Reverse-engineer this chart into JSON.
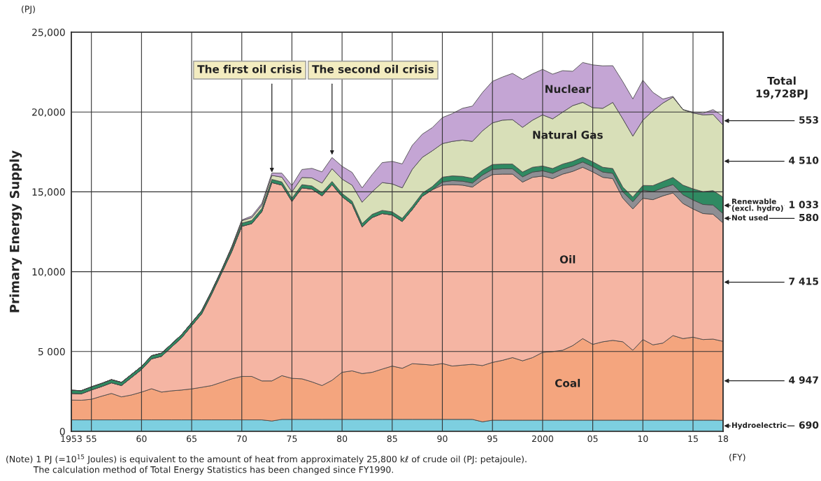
{
  "chart_data": {
    "type": "area",
    "stacked": true,
    "ylabel": "Primary Energy Supply",
    "x": [
      1953,
      1954,
      1955,
      1956,
      1957,
      1958,
      1959,
      1960,
      1961,
      1962,
      1963,
      1964,
      1965,
      1966,
      1967,
      1968,
      1969,
      1970,
      1971,
      1972,
      1973,
      1974,
      1975,
      1976,
      1977,
      1978,
      1979,
      1980,
      1981,
      1982,
      1983,
      1984,
      1985,
      1986,
      1987,
      1988,
      1989,
      1990,
      1991,
      1992,
      1993,
      1994,
      1995,
      1996,
      1997,
      1998,
      1999,
      2000,
      2001,
      2002,
      2003,
      2004,
      2005,
      2006,
      2007,
      2008,
      2009,
      2010,
      2011,
      2012,
      2013,
      2014,
      2015,
      2016,
      2017,
      2018
    ],
    "series": [
      {
        "name": "Hydroelectric",
        "color": "#7dcfe0",
        "values": [
          720,
          720,
          720,
          720,
          720,
          720,
          720,
          720,
          720,
          720,
          720,
          720,
          720,
          720,
          720,
          720,
          720,
          720,
          720,
          720,
          650,
          750,
          750,
          750,
          750,
          750,
          750,
          750,
          750,
          750,
          750,
          750,
          750,
          750,
          750,
          750,
          750,
          750,
          750,
          750,
          750,
          600,
          700,
          700,
          700,
          700,
          700,
          700,
          700,
          700,
          700,
          700,
          700,
          700,
          700,
          700,
          700,
          700,
          700,
          700,
          700,
          700,
          700,
          700,
          700,
          690
        ]
      },
      {
        "name": "Coal",
        "color": "#f4a57e",
        "values": [
          1240,
          1230,
          1290,
          1480,
          1655,
          1440,
          1560,
          1740,
          1950,
          1740,
          1820,
          1870,
          1940,
          2040,
          2150,
          2360,
          2570,
          2720,
          2720,
          2440,
          2510,
          2740,
          2570,
          2540,
          2350,
          2120,
          2450,
          2950,
          3040,
          2870,
          2950,
          3150,
          3340,
          3200,
          3490,
          3450,
          3400,
          3500,
          3340,
          3400,
          3450,
          3520,
          3620,
          3750,
          3920,
          3720,
          3920,
          4250,
          4300,
          4380,
          4670,
          5110,
          4750,
          4910,
          5000,
          4910,
          4380,
          5050,
          4720,
          4830,
          5300,
          5110,
          5200,
          5050,
          5080,
          4947
        ]
      },
      {
        "name": "Oil",
        "color": "#f5b5a3",
        "values": [
          415,
          400,
          580,
          600,
          665,
          710,
          1090,
          1410,
          1870,
          2240,
          2740,
          3270,
          3950,
          4600,
          5730,
          6850,
          7970,
          9400,
          9570,
          10600,
          12420,
          11930,
          11080,
          11960,
          12070,
          11880,
          12250,
          11000,
          10430,
          9190,
          9690,
          9740,
          9460,
          9190,
          9650,
          10520,
          10980,
          11170,
          11360,
          11270,
          11100,
          11630,
          11760,
          11660,
          11490,
          11190,
          11290,
          11040,
          10830,
          11030,
          10910,
          10730,
          10800,
          10300,
          10130,
          8990,
          8850,
          8850,
          9090,
          9220,
          8930,
          8460,
          8030,
          7890,
          7820,
          7415
        ]
      },
      {
        "name": "Not used",
        "color": "#8e8e93",
        "values": [
          0,
          0,
          0,
          0,
          0,
          0,
          0,
          0,
          0,
          0,
          0,
          0,
          0,
          0,
          0,
          0,
          0,
          0,
          0,
          0,
          0,
          0,
          0,
          0,
          0,
          0,
          0,
          0,
          0,
          0,
          0,
          0,
          0,
          0,
          0,
          0,
          0,
          200,
          250,
          250,
          250,
          300,
          330,
          330,
          330,
          330,
          330,
          330,
          330,
          330,
          330,
          330,
          330,
          330,
          330,
          400,
          450,
          500,
          500,
          500,
          520,
          550,
          560,
          570,
          575,
          580
        ]
      },
      {
        "name": "Renewable\n(excl. hydro)",
        "color": "#2f8a62",
        "values": [
          200,
          200,
          200,
          200,
          200,
          200,
          200,
          200,
          200,
          200,
          200,
          200,
          200,
          200,
          200,
          200,
          200,
          200,
          200,
          200,
          200,
          200,
          200,
          200,
          200,
          200,
          200,
          200,
          200,
          200,
          200,
          200,
          200,
          200,
          200,
          200,
          200,
          300,
          300,
          300,
          300,
          300,
          300,
          300,
          300,
          300,
          300,
          300,
          300,
          300,
          300,
          300,
          300,
          300,
          300,
          300,
          300,
          300,
          380,
          400,
          450,
          600,
          700,
          800,
          900,
          1033
        ]
      },
      {
        "name": "Natural Gas",
        "color": "#d8dfb8",
        "values": [
          0,
          0,
          0,
          0,
          0,
          0,
          0,
          0,
          0,
          0,
          0,
          0,
          0,
          0,
          0,
          0,
          100,
          150,
          180,
          200,
          250,
          300,
          400,
          450,
          500,
          600,
          800,
          900,
          1000,
          1340,
          1410,
          1740,
          1750,
          1910,
          2320,
          2240,
          2240,
          2100,
          2160,
          2270,
          2310,
          2470,
          2610,
          2750,
          2780,
          2800,
          2950,
          3200,
          3110,
          3250,
          3490,
          3430,
          3390,
          3690,
          4140,
          4270,
          3810,
          4090,
          4680,
          4910,
          5030,
          4730,
          4750,
          4810,
          4775,
          4510
        ]
      },
      {
        "name": "Nuclear",
        "color": "#c4a5d4",
        "values": [
          0,
          0,
          0,
          0,
          0,
          0,
          0,
          0,
          0,
          0,
          0,
          0,
          0,
          0,
          0,
          0,
          0,
          50,
          100,
          120,
          150,
          250,
          400,
          500,
          600,
          700,
          700,
          800,
          800,
          900,
          1080,
          1250,
          1410,
          1500,
          1500,
          1450,
          1450,
          1630,
          1740,
          1990,
          2210,
          2400,
          2600,
          2700,
          2900,
          3000,
          2900,
          2850,
          2800,
          2600,
          2150,
          2500,
          2680,
          2660,
          2300,
          2330,
          2330,
          2500,
          1160,
          250,
          50,
          0,
          50,
          100,
          300,
          553
        ]
      }
    ],
    "xlim": [
      1953,
      2018
    ],
    "ylim": [
      0,
      25000
    ],
    "xticks": [
      1953,
      {
        "value": 1955,
        "label": "55"
      },
      {
        "value": 1960,
        "label": "60"
      },
      {
        "value": 1965,
        "label": "65"
      },
      {
        "value": 1970,
        "label": "70"
      },
      {
        "value": 1975,
        "label": "75"
      },
      {
        "value": 1980,
        "label": "80"
      },
      {
        "value": 1985,
        "label": "85"
      },
      {
        "value": 1990,
        "label": "90"
      },
      {
        "value": 1995,
        "label": "95"
      },
      2000,
      {
        "value": 2005,
        "label": "05"
      },
      {
        "value": 2010,
        "label": "10"
      },
      {
        "value": 2015,
        "label": "15"
      },
      {
        "value": 2018,
        "label": "18"
      }
    ],
    "yticks": [
      0,
      {
        "value": 5000,
        "label": "5 000"
      },
      {
        "value": 10000,
        "label": "10,000"
      },
      {
        "value": 15000,
        "label": "15,000"
      },
      {
        "value": 20000,
        "label": "20,000"
      },
      {
        "value": 25000,
        "label": "25,000"
      }
    ],
    "grid": true,
    "annotations": [
      "(PJ)",
      "Total\n19,728PJ",
      "(FY)",
      "(Note) 1 PJ (=10$^{15}$ Joules) is equivalent to the amount of heat from approximately 25,800 kℓ of crude oil (PJ: petajoule).\n          The calculation method of Total Energy Statistics has been changed since FY1990.",
      {
        "text": "The first oil crisis",
        "x": 1973,
        "y": 16100
      },
      {
        "text": "The second oil crisis",
        "x": 1979,
        "y": 17200
      },
      {
        "text": "553",
        "x": 2018,
        "y": 19452
      },
      {
        "text": "4 510",
        "x": 2018,
        "y": 16920
      },
      {
        "text": "1 033",
        "x": 2018,
        "y": 14149
      },
      {
        "text": "580",
        "x": 2018,
        "y": 13342
      },
      {
        "text": "7 415",
        "x": 2018,
        "y": 9345
      },
      {
        "text": "4 947",
        "x": 2018,
        "y": 3164
      },
      {
        "text": "690",
        "x": 2018,
        "y": 345
      }
    ]
  }
}
